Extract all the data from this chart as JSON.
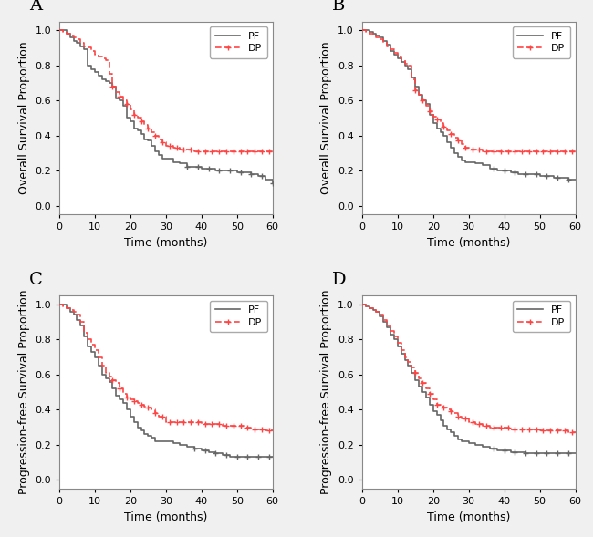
{
  "panels": [
    "A",
    "B",
    "C",
    "D"
  ],
  "panel_A": {
    "ylabel": "Overall Survival Proportion",
    "xlabel": "Time (months)",
    "pf_steps_x": [
      0,
      1,
      2,
      3,
      4,
      5,
      6,
      7,
      8,
      9,
      10,
      11,
      12,
      13,
      14,
      15,
      16,
      17,
      18,
      19,
      20,
      21,
      22,
      23,
      24,
      25,
      26,
      27,
      28,
      29,
      30,
      32,
      34,
      36,
      38,
      40,
      42,
      44,
      46,
      48,
      50,
      52,
      54,
      56,
      58,
      60
    ],
    "pf_steps_y": [
      1.0,
      1.0,
      0.98,
      0.96,
      0.94,
      0.93,
      0.91,
      0.89,
      0.8,
      0.78,
      0.76,
      0.74,
      0.72,
      0.71,
      0.7,
      0.68,
      0.61,
      0.6,
      0.57,
      0.5,
      0.48,
      0.44,
      0.43,
      0.41,
      0.38,
      0.37,
      0.34,
      0.31,
      0.29,
      0.27,
      0.27,
      0.25,
      0.24,
      0.22,
      0.22,
      0.21,
      0.21,
      0.2,
      0.2,
      0.2,
      0.19,
      0.19,
      0.18,
      0.17,
      0.15,
      0.13
    ],
    "dp_steps_x": [
      0,
      1,
      2,
      3,
      4,
      5,
      6,
      7,
      8,
      9,
      10,
      11,
      12,
      13,
      14,
      15,
      16,
      17,
      18,
      19,
      20,
      21,
      22,
      23,
      24,
      25,
      26,
      27,
      28,
      29,
      30,
      32,
      34,
      36,
      38,
      40,
      42,
      44,
      46,
      48,
      50,
      52,
      54,
      56,
      58,
      60
    ],
    "dp_steps_y": [
      1.0,
      0.99,
      0.98,
      0.97,
      0.96,
      0.95,
      0.93,
      0.91,
      0.9,
      0.88,
      0.86,
      0.85,
      0.84,
      0.83,
      0.75,
      0.68,
      0.65,
      0.62,
      0.6,
      0.58,
      0.55,
      0.52,
      0.5,
      0.48,
      0.46,
      0.44,
      0.42,
      0.4,
      0.38,
      0.36,
      0.34,
      0.33,
      0.32,
      0.32,
      0.31,
      0.31,
      0.31,
      0.31,
      0.31,
      0.31,
      0.31,
      0.31,
      0.31,
      0.31,
      0.31,
      0.31
    ],
    "pf_censor_x": [
      36,
      39,
      42,
      45,
      48,
      51,
      54,
      57,
      60
    ],
    "dp_censor_x": [
      15,
      17,
      19,
      21,
      23,
      25,
      27,
      29,
      31,
      33,
      35,
      37,
      39,
      41,
      43,
      45,
      47,
      49,
      51,
      53,
      55,
      57,
      59
    ]
  },
  "panel_B": {
    "ylabel": "Overall Survival Proportion",
    "xlabel": "Time (months)",
    "pf_steps_x": [
      0,
      1,
      2,
      3,
      4,
      5,
      6,
      7,
      8,
      9,
      10,
      11,
      12,
      13,
      14,
      15,
      16,
      17,
      18,
      19,
      20,
      21,
      22,
      23,
      24,
      25,
      26,
      27,
      28,
      29,
      30,
      32,
      34,
      36,
      38,
      40,
      42,
      44,
      46,
      48,
      50,
      52,
      54,
      56,
      58,
      60
    ],
    "pf_steps_y": [
      1.0,
      1.0,
      0.99,
      0.98,
      0.97,
      0.96,
      0.94,
      0.92,
      0.88,
      0.86,
      0.84,
      0.82,
      0.8,
      0.78,
      0.73,
      0.68,
      0.63,
      0.6,
      0.58,
      0.52,
      0.47,
      0.44,
      0.42,
      0.4,
      0.36,
      0.33,
      0.3,
      0.28,
      0.26,
      0.25,
      0.25,
      0.24,
      0.23,
      0.21,
      0.2,
      0.2,
      0.19,
      0.18,
      0.18,
      0.18,
      0.17,
      0.17,
      0.16,
      0.16,
      0.15,
      0.15
    ],
    "dp_steps_x": [
      0,
      1,
      2,
      3,
      4,
      5,
      6,
      7,
      8,
      9,
      10,
      11,
      12,
      13,
      14,
      15,
      16,
      17,
      18,
      19,
      20,
      21,
      22,
      23,
      24,
      25,
      26,
      27,
      28,
      29,
      30,
      32,
      34,
      36,
      38,
      40,
      42,
      44,
      46,
      48,
      50,
      52,
      54,
      56,
      58,
      60
    ],
    "dp_steps_y": [
      1.0,
      0.99,
      0.98,
      0.97,
      0.96,
      0.95,
      0.93,
      0.91,
      0.89,
      0.87,
      0.85,
      0.83,
      0.81,
      0.8,
      0.72,
      0.66,
      0.63,
      0.6,
      0.57,
      0.54,
      0.51,
      0.49,
      0.47,
      0.45,
      0.43,
      0.41,
      0.39,
      0.37,
      0.35,
      0.33,
      0.32,
      0.32,
      0.31,
      0.31,
      0.31,
      0.31,
      0.31,
      0.31,
      0.31,
      0.31,
      0.31,
      0.31,
      0.31,
      0.31,
      0.31,
      0.31
    ],
    "pf_censor_x": [
      37,
      40,
      43,
      46,
      49,
      52,
      55,
      58
    ],
    "dp_censor_x": [
      15,
      17,
      19,
      21,
      23,
      25,
      27,
      29,
      31,
      33,
      35,
      37,
      39,
      41,
      43,
      45,
      47,
      49,
      51,
      53,
      55,
      57,
      59
    ]
  },
  "panel_C": {
    "ylabel": "Progression-free Survival Proportion",
    "xlabel": "Time (months)",
    "pf_steps_x": [
      0,
      1,
      2,
      3,
      4,
      5,
      6,
      7,
      8,
      9,
      10,
      11,
      12,
      13,
      14,
      15,
      16,
      17,
      18,
      19,
      20,
      21,
      22,
      23,
      24,
      25,
      26,
      27,
      28,
      30,
      32,
      34,
      36,
      38,
      40,
      42,
      44,
      46,
      48,
      50,
      52,
      54,
      56,
      58,
      60
    ],
    "pf_steps_y": [
      1.0,
      1.0,
      0.98,
      0.96,
      0.94,
      0.91,
      0.88,
      0.82,
      0.76,
      0.73,
      0.7,
      0.65,
      0.6,
      0.58,
      0.56,
      0.52,
      0.48,
      0.46,
      0.44,
      0.4,
      0.36,
      0.33,
      0.3,
      0.28,
      0.26,
      0.25,
      0.24,
      0.22,
      0.22,
      0.22,
      0.21,
      0.2,
      0.19,
      0.18,
      0.17,
      0.16,
      0.15,
      0.14,
      0.13,
      0.13,
      0.13,
      0.13,
      0.13,
      0.13,
      0.13
    ],
    "dp_steps_x": [
      0,
      1,
      2,
      3,
      4,
      5,
      6,
      7,
      8,
      9,
      10,
      11,
      12,
      13,
      14,
      15,
      16,
      17,
      18,
      19,
      20,
      21,
      22,
      23,
      24,
      25,
      26,
      27,
      28,
      30,
      32,
      34,
      36,
      38,
      40,
      42,
      44,
      46,
      48,
      50,
      52,
      54,
      56,
      58,
      60
    ],
    "dp_steps_y": [
      1.0,
      0.99,
      0.98,
      0.97,
      0.96,
      0.94,
      0.9,
      0.84,
      0.8,
      0.77,
      0.74,
      0.7,
      0.65,
      0.61,
      0.59,
      0.57,
      0.55,
      0.52,
      0.49,
      0.47,
      0.46,
      0.45,
      0.44,
      0.43,
      0.42,
      0.41,
      0.4,
      0.38,
      0.36,
      0.33,
      0.33,
      0.33,
      0.33,
      0.33,
      0.32,
      0.32,
      0.32,
      0.31,
      0.31,
      0.31,
      0.3,
      0.29,
      0.29,
      0.28,
      0.28
    ],
    "pf_censor_x": [
      38,
      41,
      44,
      47,
      50,
      53,
      56,
      59
    ],
    "dp_censor_x": [
      15,
      17,
      19,
      21,
      23,
      25,
      27,
      29,
      31,
      33,
      35,
      37,
      39,
      41,
      43,
      45,
      47,
      49,
      51,
      53,
      55,
      57,
      59
    ]
  },
  "panel_D": {
    "ylabel": "Progression-free Survival Proportion",
    "xlabel": "Time (months)",
    "pf_steps_x": [
      0,
      1,
      2,
      3,
      4,
      5,
      6,
      7,
      8,
      9,
      10,
      11,
      12,
      13,
      14,
      15,
      16,
      17,
      18,
      19,
      20,
      21,
      22,
      23,
      24,
      25,
      26,
      27,
      28,
      30,
      32,
      34,
      36,
      38,
      40,
      42,
      44,
      46,
      48,
      50,
      52,
      54,
      56,
      58,
      60
    ],
    "pf_steps_y": [
      1.0,
      0.99,
      0.98,
      0.97,
      0.96,
      0.93,
      0.9,
      0.87,
      0.83,
      0.8,
      0.76,
      0.72,
      0.68,
      0.65,
      0.61,
      0.57,
      0.53,
      0.5,
      0.47,
      0.43,
      0.39,
      0.37,
      0.34,
      0.31,
      0.29,
      0.27,
      0.25,
      0.23,
      0.22,
      0.21,
      0.2,
      0.19,
      0.18,
      0.17,
      0.17,
      0.16,
      0.16,
      0.15,
      0.15,
      0.15,
      0.15,
      0.15,
      0.15,
      0.15,
      0.15
    ],
    "dp_steps_x": [
      0,
      1,
      2,
      3,
      4,
      5,
      6,
      7,
      8,
      9,
      10,
      11,
      12,
      13,
      14,
      15,
      16,
      17,
      18,
      19,
      20,
      21,
      22,
      23,
      24,
      25,
      26,
      27,
      28,
      30,
      32,
      34,
      36,
      38,
      40,
      42,
      44,
      46,
      48,
      50,
      52,
      54,
      56,
      58,
      60
    ],
    "dp_steps_y": [
      1.0,
      0.99,
      0.98,
      0.97,
      0.96,
      0.94,
      0.91,
      0.88,
      0.85,
      0.82,
      0.78,
      0.74,
      0.7,
      0.67,
      0.64,
      0.61,
      0.58,
      0.55,
      0.52,
      0.49,
      0.46,
      0.43,
      0.42,
      0.41,
      0.4,
      0.39,
      0.38,
      0.36,
      0.35,
      0.33,
      0.32,
      0.31,
      0.3,
      0.3,
      0.3,
      0.29,
      0.29,
      0.29,
      0.29,
      0.28,
      0.28,
      0.28,
      0.28,
      0.27,
      0.27
    ],
    "pf_censor_x": [
      37,
      40,
      43,
      46,
      49,
      52,
      55,
      58
    ],
    "dp_censor_x": [
      15,
      17,
      19,
      21,
      23,
      25,
      27,
      29,
      31,
      33,
      35,
      37,
      39,
      41,
      43,
      45,
      47,
      49,
      51,
      53,
      55,
      57,
      59
    ]
  },
  "pf_color": "#666666",
  "dp_color": "#ff4444",
  "xlim": [
    0,
    60
  ],
  "ylim": [
    -0.05,
    1.05
  ],
  "xticks": [
    0,
    10,
    20,
    30,
    40,
    50,
    60
  ],
  "yticks": [
    0.0,
    0.2,
    0.4,
    0.6,
    0.8,
    1.0
  ],
  "tick_fontsize": 8,
  "label_fontsize": 9,
  "panel_label_fontsize": 14,
  "legend_fontsize": 8,
  "bg_color": "#ffffff",
  "outer_bg": "#f0f0f0"
}
